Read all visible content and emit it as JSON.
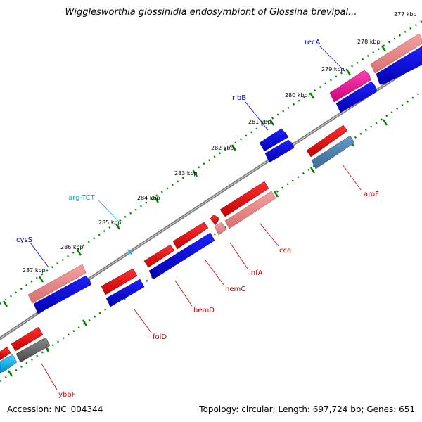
{
  "title": "Wigglesworthia glossinidia endosymbiont of Glossina brevipal...",
  "footer": {
    "accession": "Accession: NC_004344",
    "summary": "Topology: circular; Length: 697,724 bp; Genes: 651"
  },
  "scale_ticks": [
    "277 kbp",
    "278 kbp",
    "279 kbp",
    "280 kbp",
    "281 kbp",
    "282 kbp",
    "283 kbp",
    "284 kbp",
    "285 kbp",
    "286 kbp",
    "287 kbp"
  ],
  "gene_labels": {
    "recA": "recA",
    "ribB": "ribB",
    "argTCT": "arg-TCT",
    "cysS": "cysS",
    "aroF": "aroF",
    "cca": "cca",
    "infA": "infA",
    "hemC": "hemC",
    "hemD": "hemD",
    "folD": "folD",
    "ybbF": "ybbF"
  },
  "colors": {
    "forward_label": "#0000cc",
    "reverse_label": "#cc0000",
    "trna_label": "#00b4e6",
    "backbone": "#707070",
    "tick": "#008000"
  }
}
